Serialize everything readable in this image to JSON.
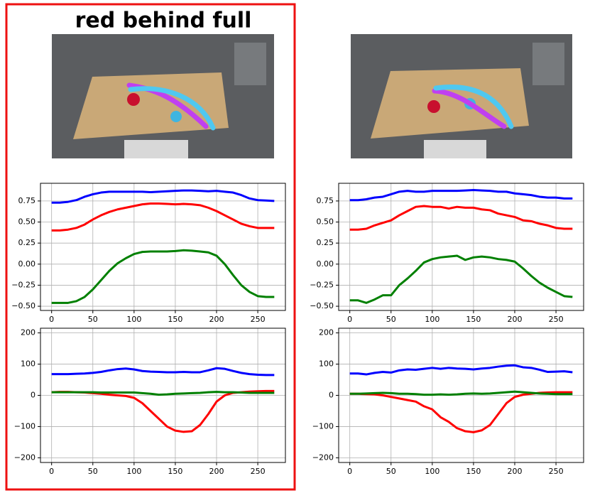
{
  "title": "red behind full",
  "chart_data": [
    {
      "type": "line",
      "x": [
        0,
        10,
        20,
        30,
        40,
        50,
        60,
        70,
        80,
        90,
        100,
        110,
        120,
        130,
        140,
        150,
        160,
        170,
        180,
        190,
        200,
        210,
        220,
        230,
        240,
        250,
        260,
        270
      ],
      "xlim": [
        -13.5,
        283.5
      ],
      "xticks": [
        0,
        50,
        100,
        150,
        200,
        250
      ],
      "ylim": [
        -0.55,
        0.96
      ],
      "yticks": [
        {
          "value": 0.75,
          "label": "0.75"
        },
        {
          "value": 0.5,
          "label": "0.50"
        },
        {
          "value": 0.25,
          "label": "0.25"
        },
        {
          "value": 0,
          "label": "0.00"
        },
        {
          "value": -0.25,
          "label": "−0.25"
        },
        {
          "value": -0.5,
          "label": "−0.50"
        }
      ],
      "grid": true,
      "series": [
        {
          "color": "#0000ff",
          "values": [
            0.73,
            0.73,
            0.74,
            0.76,
            0.8,
            0.83,
            0.85,
            0.86,
            0.86,
            0.86,
            0.86,
            0.86,
            0.855,
            0.86,
            0.865,
            0.87,
            0.875,
            0.875,
            0.87,
            0.865,
            0.87,
            0.86,
            0.85,
            0.82,
            0.78,
            0.76,
            0.755,
            0.75
          ]
        },
        {
          "color": "#ff0000",
          "values": [
            0.4,
            0.4,
            0.41,
            0.43,
            0.47,
            0.53,
            0.58,
            0.62,
            0.65,
            0.67,
            0.69,
            0.71,
            0.72,
            0.72,
            0.715,
            0.71,
            0.715,
            0.71,
            0.7,
            0.67,
            0.63,
            0.58,
            0.53,
            0.48,
            0.45,
            0.43,
            0.43,
            0.43
          ]
        },
        {
          "color": "#008000",
          "values": [
            -0.46,
            -0.46,
            -0.46,
            -0.44,
            -0.39,
            -0.3,
            -0.19,
            -0.08,
            0.01,
            0.07,
            0.12,
            0.145,
            0.15,
            0.15,
            0.15,
            0.155,
            0.165,
            0.16,
            0.15,
            0.14,
            0.1,
            0.0,
            -0.13,
            -0.25,
            -0.33,
            -0.38,
            -0.39,
            -0.39
          ]
        }
      ]
    },
    {
      "type": "line",
      "x": [
        0,
        10,
        20,
        30,
        40,
        50,
        60,
        70,
        80,
        90,
        100,
        110,
        120,
        130,
        140,
        150,
        160,
        170,
        180,
        190,
        200,
        210,
        220,
        230,
        240,
        250,
        260,
        270
      ],
      "xlim": [
        -13.5,
        283.5
      ],
      "xticks": [
        0,
        50,
        100,
        150,
        200,
        250
      ],
      "ylim": [
        -0.55,
        0.96
      ],
      "yticks": [
        {
          "value": 0.75,
          "label": "0.75"
        },
        {
          "value": 0.5,
          "label": "0.50"
        },
        {
          "value": 0.25,
          "label": "0.25"
        },
        {
          "value": 0,
          "label": "0.00"
        },
        {
          "value": -0.25,
          "label": "−0.25"
        },
        {
          "value": -0.5,
          "label": "−0.50"
        }
      ],
      "grid": true,
      "series": [
        {
          "color": "#0000ff",
          "values": [
            0.76,
            0.76,
            0.77,
            0.79,
            0.8,
            0.83,
            0.86,
            0.87,
            0.86,
            0.86,
            0.87,
            0.87,
            0.87,
            0.87,
            0.875,
            0.88,
            0.875,
            0.87,
            0.86,
            0.86,
            0.84,
            0.83,
            0.82,
            0.8,
            0.79,
            0.79,
            0.78,
            0.78
          ]
        },
        {
          "color": "#ff0000",
          "values": [
            0.41,
            0.41,
            0.42,
            0.46,
            0.49,
            0.52,
            0.58,
            0.63,
            0.68,
            0.69,
            0.68,
            0.68,
            0.66,
            0.68,
            0.67,
            0.67,
            0.65,
            0.64,
            0.6,
            0.58,
            0.56,
            0.52,
            0.51,
            0.48,
            0.46,
            0.43,
            0.42,
            0.42
          ]
        },
        {
          "color": "#008000",
          "values": [
            -0.43,
            -0.43,
            -0.46,
            -0.42,
            -0.37,
            -0.37,
            -0.25,
            -0.17,
            -0.08,
            0.02,
            0.06,
            0.08,
            0.09,
            0.1,
            0.05,
            0.08,
            0.09,
            0.08,
            0.06,
            0.05,
            0.03,
            -0.05,
            -0.14,
            -0.22,
            -0.28,
            -0.33,
            -0.38,
            -0.39
          ]
        }
      ]
    },
    {
      "type": "line",
      "x": [
        0,
        10,
        20,
        30,
        40,
        50,
        60,
        70,
        80,
        90,
        100,
        110,
        120,
        130,
        140,
        150,
        160,
        170,
        180,
        190,
        200,
        210,
        220,
        230,
        240,
        250,
        260,
        270
      ],
      "xlim": [
        -13.5,
        283.5
      ],
      "xticks": [
        0,
        50,
        100,
        150,
        200,
        250
      ],
      "ylim": [
        -215,
        215
      ],
      "yticks": [
        200,
        100,
        0,
        {
          "value": -100,
          "label": "−100"
        },
        {
          "value": -200,
          "label": "−200"
        }
      ],
      "grid": true,
      "series": [
        {
          "color": "#0000ff",
          "values": [
            68,
            68,
            68,
            69,
            70,
            72,
            75,
            80,
            84,
            86,
            83,
            78,
            76,
            75,
            74,
            74,
            75,
            74,
            74,
            80,
            87,
            85,
            78,
            72,
            68,
            66,
            65,
            65
          ]
        },
        {
          "color": "#ff0000",
          "values": [
            10,
            11,
            11,
            10,
            9,
            7,
            5,
            2,
            0,
            -2,
            -8,
            -25,
            -50,
            -75,
            -100,
            -113,
            -117,
            -115,
            -95,
            -60,
            -20,
            0,
            8,
            10,
            12,
            13,
            14,
            14
          ]
        },
        {
          "color": "#008000",
          "values": [
            10,
            10,
            10,
            10,
            10,
            10,
            9,
            9,
            9,
            9,
            9,
            7,
            5,
            2,
            3,
            5,
            6,
            7,
            8,
            10,
            11,
            10,
            10,
            9,
            8,
            8,
            8,
            8
          ]
        }
      ]
    },
    {
      "type": "line",
      "x": [
        0,
        10,
        20,
        30,
        40,
        50,
        60,
        70,
        80,
        90,
        100,
        110,
        120,
        130,
        140,
        150,
        160,
        170,
        180,
        190,
        200,
        210,
        220,
        230,
        240,
        250,
        260,
        270
      ],
      "xlim": [
        -13.5,
        283.5
      ],
      "xticks": [
        0,
        50,
        100,
        150,
        200,
        250
      ],
      "ylim": [
        -215,
        215
      ],
      "yticks": [
        200,
        100,
        0,
        {
          "value": -100,
          "label": "−100"
        },
        {
          "value": -200,
          "label": "−200"
        }
      ],
      "grid": true,
      "series": [
        {
          "color": "#0000ff",
          "values": [
            70,
            70,
            67,
            72,
            75,
            73,
            80,
            83,
            82,
            85,
            88,
            85,
            88,
            86,
            85,
            83,
            86,
            88,
            92,
            95,
            96,
            90,
            88,
            82,
            75,
            76,
            77,
            74
          ]
        },
        {
          "color": "#ff0000",
          "values": [
            5,
            5,
            4,
            3,
            0,
            -5,
            -10,
            -15,
            -20,
            -35,
            -45,
            -70,
            -85,
            -105,
            -115,
            -118,
            -112,
            -95,
            -60,
            -25,
            -5,
            2,
            5,
            8,
            9,
            10,
            10,
            10
          ]
        },
        {
          "color": "#008000",
          "values": [
            5,
            5,
            6,
            7,
            8,
            7,
            5,
            5,
            4,
            2,
            2,
            3,
            2,
            3,
            5,
            6,
            5,
            6,
            8,
            10,
            12,
            10,
            8,
            6,
            5,
            4,
            4,
            4
          ]
        }
      ]
    }
  ]
}
